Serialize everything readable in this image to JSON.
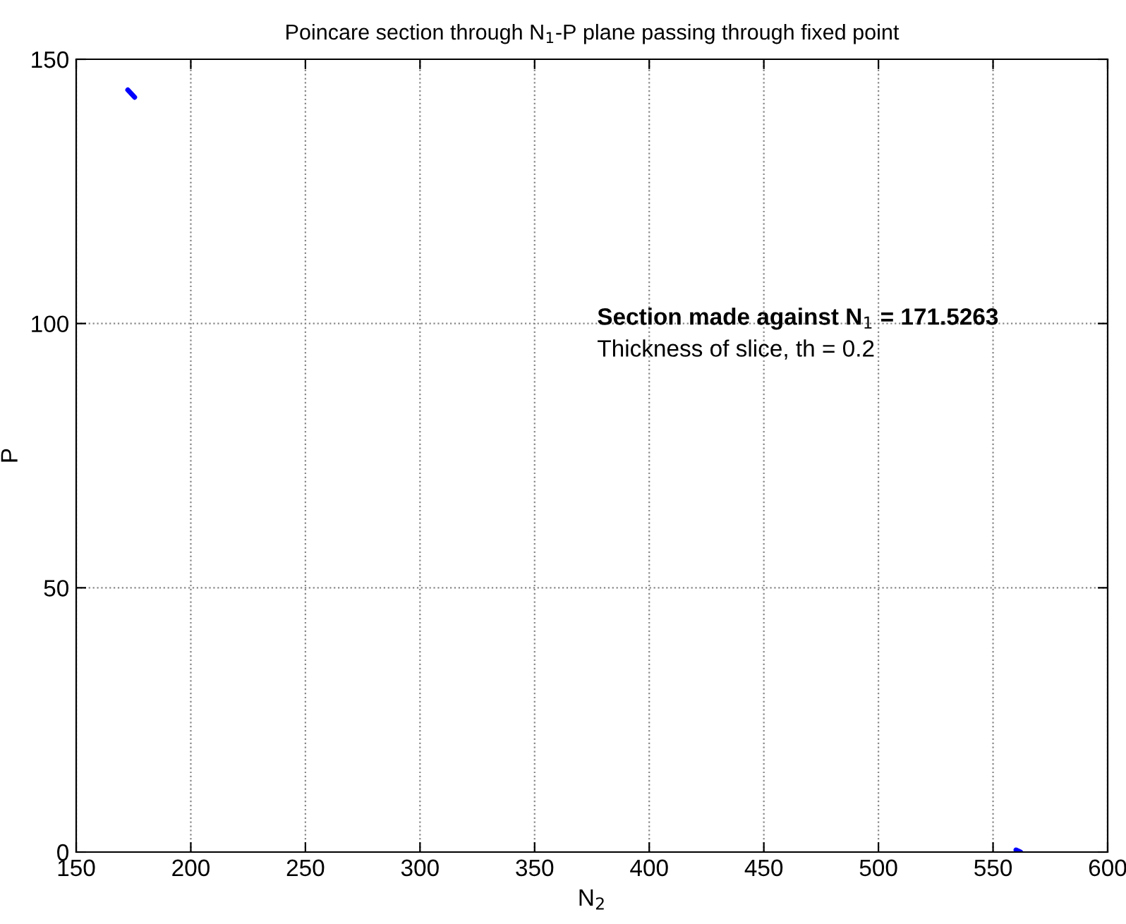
{
  "chart_data": {
    "type": "line",
    "title": "Poincare section through N$_{1}$-P plane passing through fixed point",
    "xlabel": "N$_{2}$",
    "ylabel": "P",
    "series": [
      {
        "color": "#0000ff",
        "x": [
          172.5,
          175.5
        ],
        "values": [
          144.2,
          142.8
        ]
      },
      {
        "color": "#0000ff",
        "x": [
          560,
          562
        ],
        "values": [
          0.4,
          0
        ]
      }
    ],
    "xlim": [
      150,
      600
    ],
    "xticks": [
      150,
      200,
      250,
      300,
      350,
      400,
      450,
      500,
      550,
      600
    ],
    "ylim": [
      0,
      150
    ],
    "yticks": [
      0,
      50,
      100,
      150
    ],
    "grid": true,
    "line_style": "solid",
    "marker": "none",
    "annotations": [
      "Section made against N$_{1}$ = 171.5263",
      "Thickness of slice, th = 0.2"
    ]
  }
}
